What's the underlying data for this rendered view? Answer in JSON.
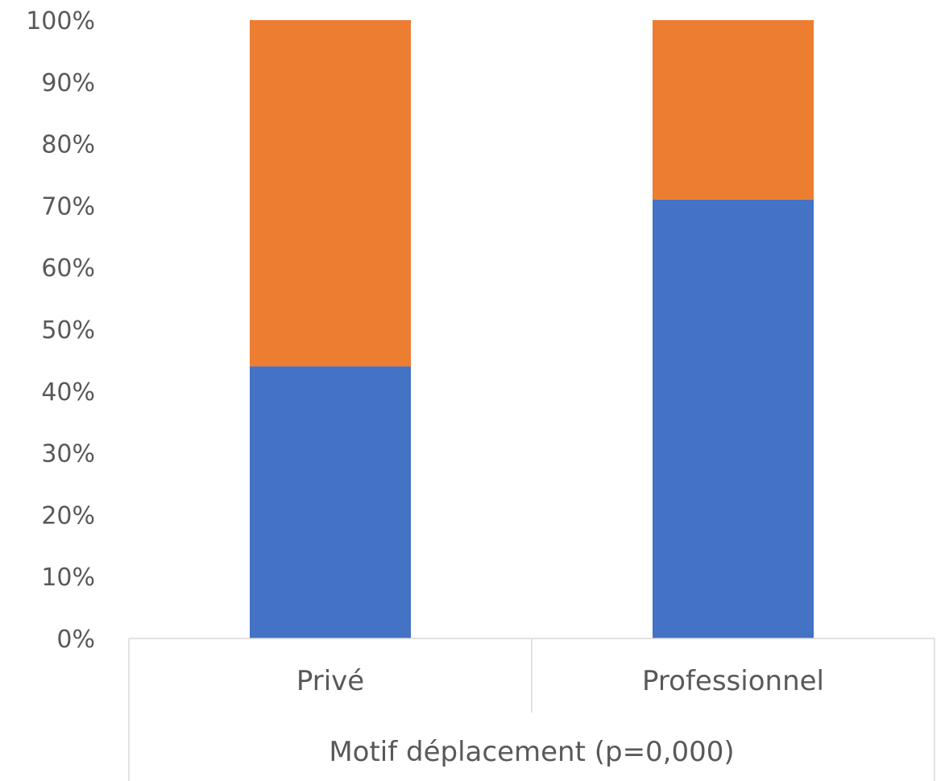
{
  "chart_data": {
    "type": "bar",
    "stacked": "percent",
    "categories": [
      "Privé",
      "Professionnel"
    ],
    "series": [
      {
        "values": [
          44,
          71
        ],
        "color": "#4472C4"
      },
      {
        "values": [
          56,
          29
        ],
        "color": "#ED7D31"
      }
    ],
    "ylim": [
      0,
      100
    ],
    "yticks": [
      "0%",
      "10%",
      "20%",
      "30%",
      "40%",
      "50%",
      "60%",
      "70%",
      "80%",
      "90%",
      "100%"
    ],
    "xlabel": "Motif déplacement (p=0,000)",
    "legend": "none",
    "grid": false
  }
}
